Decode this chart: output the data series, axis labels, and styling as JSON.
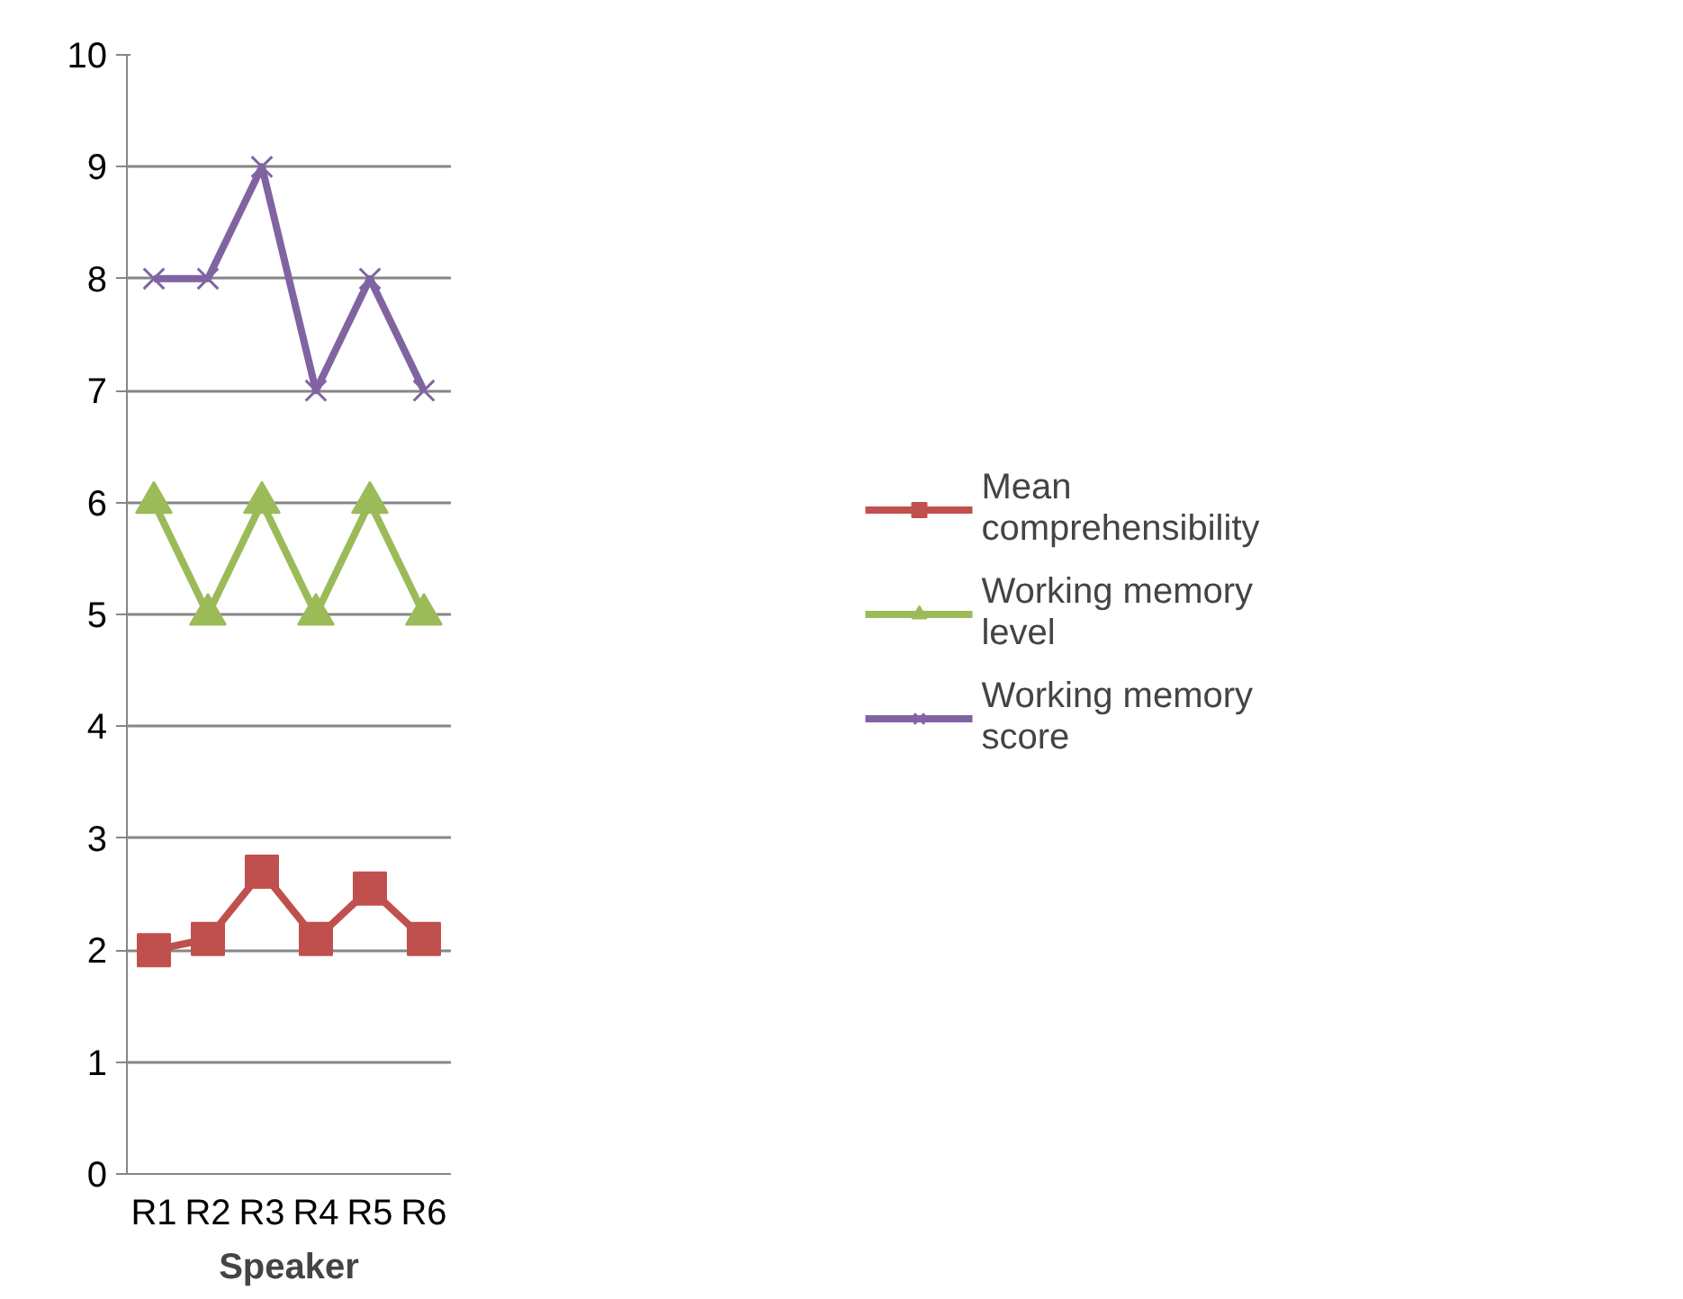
{
  "chart_data": {
    "type": "line",
    "xlabel": "Speaker",
    "categories": [
      "R1",
      "R2",
      "R3",
      "R4",
      "R5",
      "R6"
    ],
    "series": [
      {
        "name": "Mean comprehensibility",
        "color": "#c0504d",
        "marker": "square",
        "values": [
          2.0,
          2.1,
          2.7,
          2.1,
          2.55,
          2.1
        ]
      },
      {
        "name": "Working memory level",
        "color": "#9bbb59",
        "marker": "triangle",
        "values": [
          6,
          5,
          6,
          5,
          6,
          5
        ]
      },
      {
        "name": "Working memory score",
        "color": "#8064a2",
        "marker": "cross",
        "values": [
          8,
          8,
          9,
          7,
          8,
          7
        ]
      }
    ],
    "ylim": [
      0,
      10
    ],
    "yticks": [
      0,
      1,
      2,
      3,
      4,
      5,
      6,
      7,
      8,
      9,
      10
    ],
    "grid": "y",
    "legend": "right"
  }
}
